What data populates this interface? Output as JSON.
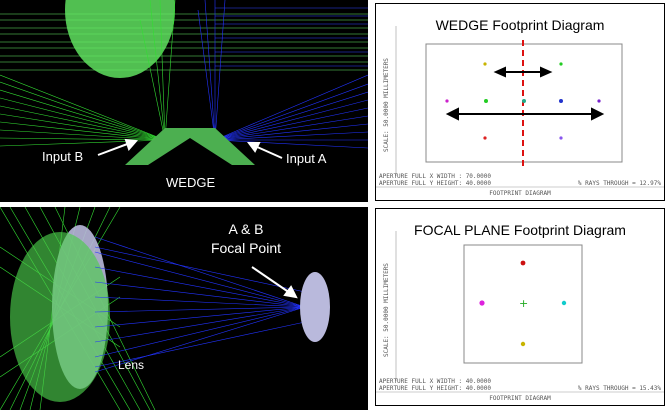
{
  "top_left": {
    "input_b": "Input B",
    "input_a": "Input A",
    "wedge": "WEDGE",
    "colors": {
      "green": "#33dd33",
      "blue": "#2233ff",
      "wedge": "#4caf50"
    }
  },
  "bottom_left": {
    "focal_point_line1": "A & B",
    "focal_point_line2": "Focal Point",
    "lens": "Lens",
    "colors": {
      "lens": "#b9b9dc"
    }
  },
  "wedge_footprint": {
    "title": "WEDGE Footprint Diagram",
    "scale": "SCALE: 50.0000 MILLIMETERS",
    "aperture_x": "APERTURE FULL X WIDTH : 70.0000",
    "aperture_y": "APERTURE FULL Y HEIGHT: 40.0000",
    "rays_through": "% RAYS THROUGH = 12.97%",
    "footer": "FOOTPRINT DIAGRAM"
  },
  "focal_footprint": {
    "title": "FOCAL PLANE Footprint Diagram",
    "scale": "SCALE: 50.0000 MILLIMETERS",
    "aperture_x": "APERTURE FULL X WIDTH : 40.0000",
    "aperture_y": "APERTURE FULL Y HEIGHT: 40.0000",
    "rays_through": "% RAYS THROUGH = 15.43%",
    "footer": "FOOTPRINT DIAGRAM"
  }
}
